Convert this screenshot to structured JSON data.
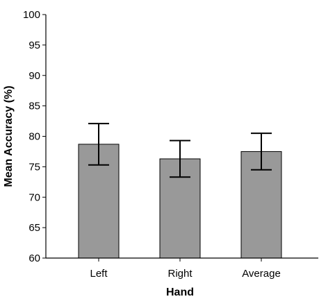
{
  "chart_data": {
    "type": "bar",
    "xlabel": "Hand",
    "ylabel": "Mean Accuracy (%)",
    "categories": [
      "Left",
      "Right",
      "Average"
    ],
    "values": [
      78.7,
      76.3,
      77.5
    ],
    "error_low": [
      75.3,
      73.3,
      74.5
    ],
    "error_high": [
      82.1,
      79.3,
      80.5
    ],
    "ylim": [
      60,
      100
    ],
    "yticks": [
      "60",
      "65",
      "70",
      "75",
      "80",
      "85",
      "90",
      "95",
      "100"
    ],
    "grid": false,
    "legend": "none",
    "colors": {
      "bar_fill": "#999999",
      "bar_stroke": "#000000",
      "axis": "#000000"
    }
  }
}
